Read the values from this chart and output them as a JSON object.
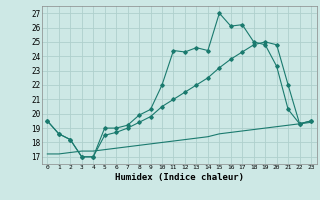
{
  "title": "",
  "xlabel": "Humidex (Indice chaleur)",
  "ylabel": "",
  "background_color": "#cde8e5",
  "grid_color": "#afd0cc",
  "line_color": "#1a7a6e",
  "x_ticks": [
    0,
    1,
    2,
    3,
    4,
    5,
    6,
    7,
    8,
    9,
    10,
    11,
    12,
    13,
    14,
    15,
    16,
    17,
    18,
    19,
    20,
    21,
    22,
    23
  ],
  "y_ticks": [
    17,
    18,
    19,
    20,
    21,
    22,
    23,
    24,
    25,
    26,
    27
  ],
  "ylim": [
    16.5,
    27.5
  ],
  "xlim": [
    -0.5,
    23.5
  ],
  "line1_x": [
    0,
    1,
    2,
    3,
    4,
    5,
    6,
    7,
    8,
    9,
    10,
    11,
    12,
    13,
    14,
    15,
    16,
    17,
    18,
    19,
    20,
    21,
    22,
    23
  ],
  "line1_y": [
    19.5,
    18.6,
    18.2,
    17.0,
    17.0,
    19.0,
    19.0,
    19.2,
    19.9,
    20.3,
    22.0,
    24.4,
    24.3,
    24.6,
    24.4,
    27.0,
    26.1,
    26.2,
    25.0,
    24.8,
    23.3,
    20.3,
    19.3,
    19.5
  ],
  "line2_x": [
    0,
    1,
    2,
    3,
    4,
    5,
    6,
    7,
    8,
    9,
    10,
    11,
    12,
    13,
    14,
    15,
    16,
    17,
    18,
    19,
    20,
    21,
    22,
    23
  ],
  "line2_y": [
    19.5,
    18.6,
    18.2,
    17.0,
    17.0,
    18.5,
    18.7,
    19.0,
    19.4,
    19.8,
    20.5,
    21.0,
    21.5,
    22.0,
    22.5,
    23.2,
    23.8,
    24.3,
    24.8,
    25.0,
    24.8,
    22.0,
    19.3,
    19.5
  ],
  "line3_x": [
    0,
    1,
    2,
    3,
    4,
    5,
    6,
    7,
    8,
    9,
    10,
    11,
    12,
    13,
    14,
    15,
    16,
    17,
    18,
    19,
    20,
    21,
    22,
    23
  ],
  "line3_y": [
    17.2,
    17.2,
    17.3,
    17.4,
    17.4,
    17.5,
    17.6,
    17.7,
    17.8,
    17.9,
    18.0,
    18.1,
    18.2,
    18.3,
    18.4,
    18.6,
    18.7,
    18.8,
    18.9,
    19.0,
    19.1,
    19.2,
    19.3,
    19.4
  ]
}
